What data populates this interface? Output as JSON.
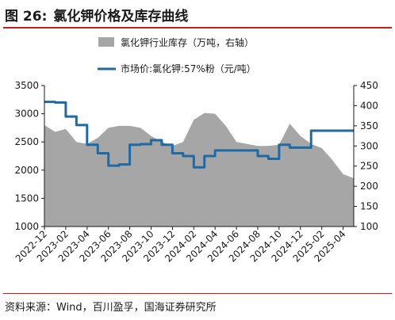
{
  "figure": {
    "number": "图 26:",
    "title": "氯化钾价格及库存曲线",
    "source": "资料来源：Wind，百川盈孚，国海证券研究所"
  },
  "colors": {
    "inventory": "#a6a6a6",
    "price": "#1f6aa5",
    "rule": "#c41e1e"
  },
  "chart_data": {
    "type": "area",
    "legend_position": "top-center",
    "grid": false,
    "x": [
      "2022-12",
      "2023-01",
      "2023-02",
      "2023-03",
      "2023-04",
      "2023-05",
      "2023-06",
      "2023-07",
      "2023-08",
      "2023-09",
      "2023-10",
      "2023-11",
      "2023-12",
      "2024-01",
      "2024-02",
      "2024-03",
      "2024-04",
      "2024-05",
      "2024-06",
      "2024-07",
      "2024-08",
      "2024-09",
      "2024-10",
      "2024-11",
      "2024-12",
      "2025-01",
      "2025-02",
      "2025-03",
      "2025-04",
      "2025-05"
    ],
    "x_tick_labels": [
      "2022-12",
      "2023-02",
      "2023-04",
      "2023-06",
      "2023-08",
      "2023-10",
      "2023-12",
      "2024-02",
      "2024-04",
      "2024-06",
      "2024-08",
      "2024-10",
      "2024-12",
      "2025-02",
      "2025-04"
    ],
    "y_left": {
      "ticks": [
        1000,
        1500,
        2000,
        2500,
        3000,
        3500
      ],
      "lim": [
        1000,
        3500
      ]
    },
    "y_right": {
      "ticks": [
        100,
        150,
        200,
        250,
        300,
        350,
        400,
        450
      ],
      "lim": [
        100,
        450
      ]
    },
    "series": [
      {
        "name": "氯化钾行业库存（万吨，右轴）",
        "type": "area",
        "axis": "right",
        "values": [
          352,
          335,
          342,
          310,
          305,
          320,
          345,
          350,
          350,
          345,
          325,
          310,
          300,
          310,
          365,
          382,
          380,
          350,
          310,
          305,
          300,
          300,
          303,
          355,
          325,
          305,
          295,
          265,
          230,
          220
        ]
      },
      {
        "name": "市场价:氯化钾:57%粉（元/吨）",
        "type": "line",
        "axis": "left",
        "values": [
          3210,
          3200,
          2950,
          2800,
          2450,
          2300,
          2080,
          2100,
          2450,
          2460,
          2530,
          2450,
          2300,
          2250,
          2050,
          2250,
          2350,
          2350,
          2350,
          2350,
          2250,
          2200,
          2450,
          2400,
          2400,
          2700,
          2700,
          2700,
          2700,
          2700
        ]
      }
    ]
  }
}
